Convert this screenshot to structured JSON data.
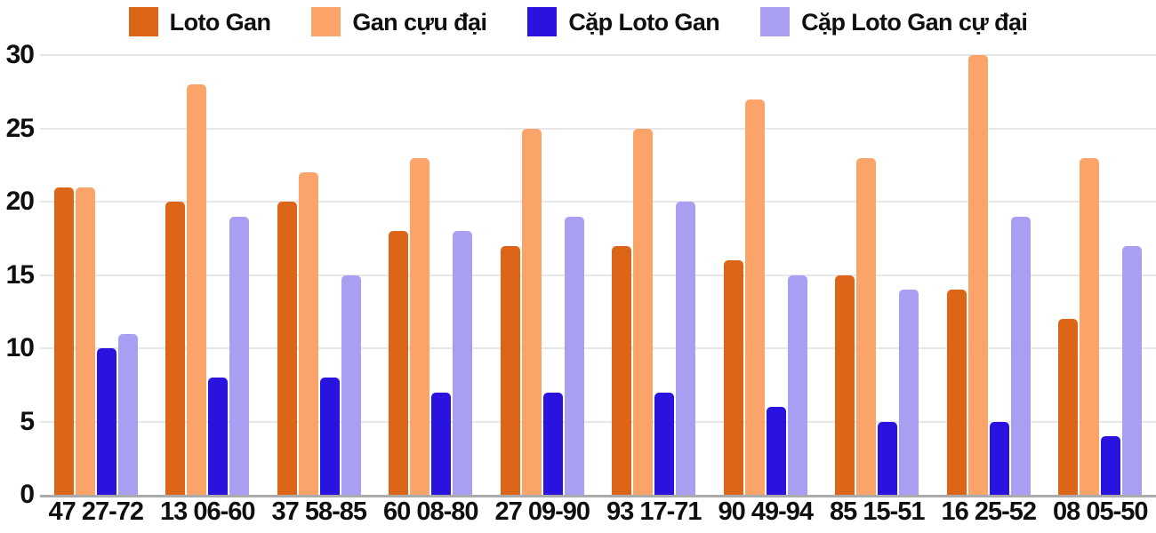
{
  "chart_data": {
    "type": "bar",
    "title": "",
    "xlabel": "",
    "ylabel": "",
    "categories": [
      "47 27-72",
      "13 06-60",
      "37 58-85",
      "60 08-80",
      "27 09-90",
      "93 17-71",
      "90 49-94",
      "85 15-51",
      "16 25-52",
      "08 05-50"
    ],
    "series": [
      {
        "name": "Loto Gan",
        "color": "#DC6518",
        "values": [
          21,
          20,
          20,
          18,
          17,
          17,
          16,
          15,
          14,
          12
        ]
      },
      {
        "name": "Gan cựu đại",
        "color": "#FBA46A",
        "values": [
          21,
          28,
          22,
          23,
          25,
          25,
          27,
          23,
          30,
          23
        ]
      },
      {
        "name": "Cặp Loto Gan",
        "color": "#2A12DF",
        "values": [
          10,
          8,
          8,
          7,
          7,
          7,
          6,
          5,
          5,
          4
        ]
      },
      {
        "name": "Cặp Loto Gan cự đại",
        "color": "#A89FF3",
        "values": [
          11,
          19,
          15,
          18,
          19,
          20,
          15,
          14,
          19,
          17
        ]
      }
    ],
    "y_ticks": [
      0,
      5,
      10,
      15,
      20,
      25,
      30
    ],
    "ylim": [
      0,
      30
    ],
    "grid": "horizontal-only",
    "gridline_color": "#E7E7E7",
    "axis_line_color": "#ABABAB",
    "text_color": "#0F0F0F",
    "background_color": "#FFFFFF",
    "legend_position": "top-center"
  }
}
